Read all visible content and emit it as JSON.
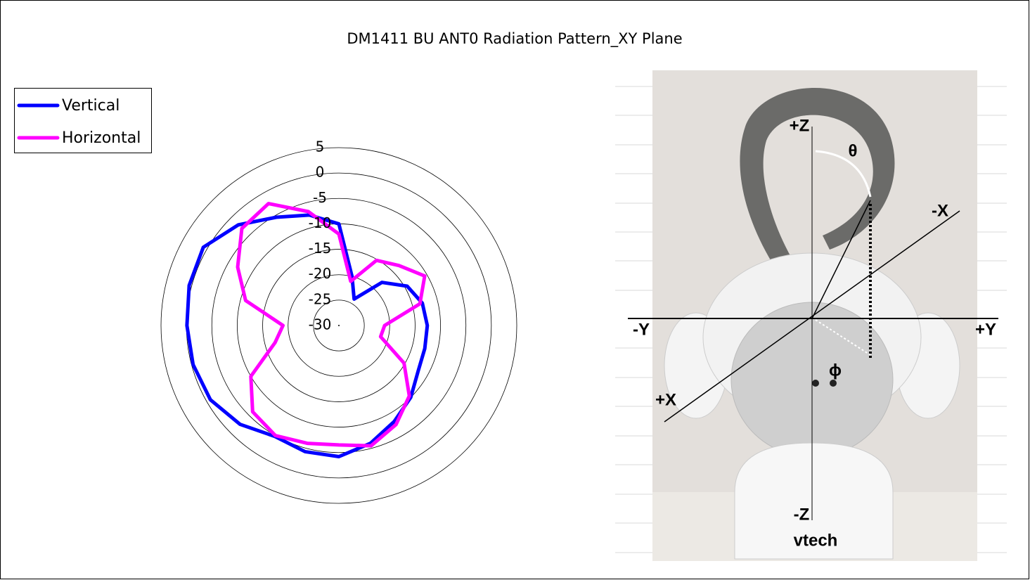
{
  "chart_data": {
    "type": "radar",
    "title": "DM1411 BU ANT0 Radiation Pattern_XY Plane",
    "categories": [
      null,
      null,
      null,
      null,
      null,
      null,
      null,
      null,
      null,
      null,
      null,
      null,
      null,
      null,
      null,
      null,
      null,
      null,
      null,
      null,
      null,
      null,
      null,
      null
    ],
    "series": [
      {
        "name": "Vertical",
        "color": "#0000ff",
        "values": [
          -10,
          -20,
          -24,
          -18,
          -14.5,
          -13,
          -12.6,
          -12.5,
          -12,
          -10,
          -8.2,
          -6,
          -4.2,
          -4.3,
          -4.8,
          -2.5,
          -0.8,
          -0.3,
          -0.1,
          0.5,
          0.8,
          -2,
          -5.4,
          -7.5
        ]
      },
      {
        "name": "Horizontal",
        "color": "#ff00ff",
        "values": [
          -12,
          -21,
          -15.2,
          -13.3,
          -10.5,
          -13.5,
          -21,
          -21.5,
          -15.2,
          -10.4,
          -7.5,
          -5.5,
          -6.5,
          -6,
          -5,
          -6,
          -10,
          -17,
          -19,
          -11,
          -7,
          -3,
          -2.3,
          -6.8
        ]
      }
    ],
    "rlim": [
      -30,
      5
    ],
    "rticks": [
      5,
      0,
      -5,
      -10,
      -15,
      -20,
      -25,
      -30
    ],
    "legend": "top-left",
    "annotations": [
      "+Z",
      "-Z",
      "-X",
      "+X",
      "-Y",
      "+Y",
      "θ",
      "ϕ",
      "vtech"
    ]
  }
}
